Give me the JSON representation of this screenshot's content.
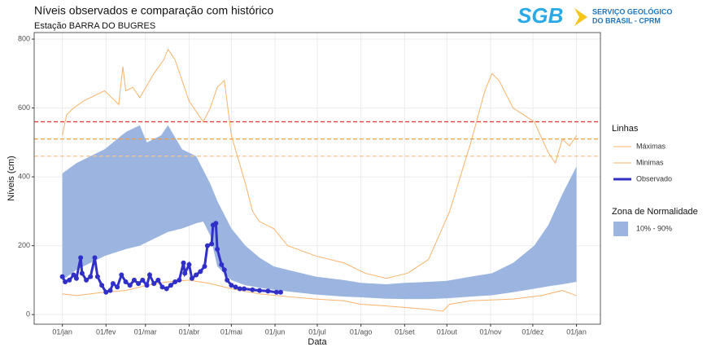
{
  "chart_data": {
    "type": "line",
    "title": "Níveis observados e comparação com histórico",
    "subtitle": "Estação BARRA DO BUGRES",
    "logo": {
      "mark": "SGB",
      "line1": "SERVIÇO GEOLÓGICO",
      "line2": "DO BRASIL - CPRM"
    },
    "x_label": "Data",
    "y_label": "Níveis (cm)",
    "xlim": [
      -20,
      382
    ],
    "ylim": [
      -28,
      819
    ],
    "xticks": [
      {
        "value": 0,
        "label": "01/jan"
      },
      {
        "value": 31,
        "label": "01/fev"
      },
      {
        "value": 59,
        "label": "01/mar"
      },
      {
        "value": 90,
        "label": "01/abr"
      },
      {
        "value": 120,
        "label": "01/mai"
      },
      {
        "value": 151,
        "label": "01/jun"
      },
      {
        "value": 181,
        "label": "01/jul"
      },
      {
        "value": 212,
        "label": "01/ago"
      },
      {
        "value": 243,
        "label": "01/set"
      },
      {
        "value": 273,
        "label": "01/out"
      },
      {
        "value": 304,
        "label": "01/nov"
      },
      {
        "value": 334,
        "label": "01/dez"
      },
      {
        "value": 365,
        "label": "01/jan"
      }
    ],
    "yticks": [
      0,
      200,
      400,
      600,
      800
    ],
    "grid": true,
    "hlines": [
      {
        "value": 560,
        "color": "#e8302a"
      },
      {
        "value": 510,
        "color": "#f39a3c"
      },
      {
        "value": 460,
        "color": "#f8c58a"
      }
    ],
    "legend_title": "Linhas",
    "band_legend_title": "Zona de Normalidade",
    "band": {
      "name": "10% - 90%",
      "color": "#9bb5e0",
      "x": [
        0,
        10,
        20,
        30,
        45,
        55,
        60,
        70,
        75,
        85,
        95,
        100,
        105,
        110,
        120,
        130,
        140,
        150,
        165,
        180,
        200,
        212,
        230,
        243,
        260,
        273,
        290,
        305,
        320,
        335,
        345,
        355,
        365
      ],
      "upper": [
        410,
        440,
        460,
        480,
        530,
        550,
        500,
        520,
        550,
        480,
        460,
        420,
        380,
        330,
        250,
        200,
        165,
        140,
        125,
        110,
        100,
        92,
        88,
        92,
        95,
        98,
        110,
        120,
        150,
        200,
        260,
        350,
        430
      ],
      "lower": [
        100,
        130,
        150,
        170,
        190,
        200,
        210,
        230,
        240,
        250,
        265,
        270,
        230,
        140,
        100,
        85,
        78,
        72,
        65,
        58,
        52,
        50,
        46,
        45,
        45,
        47,
        52,
        56,
        65,
        75,
        82,
        88,
        95
      ]
    },
    "series": [
      {
        "name": "Máximas",
        "color": "#f9b36b",
        "x": [
          0,
          3,
          8,
          15,
          30,
          40,
          43,
          45,
          50,
          55,
          65,
          72,
          75,
          80,
          90,
          100,
          105,
          110,
          115,
          120,
          130,
          135,
          140,
          150,
          160,
          180,
          200,
          215,
          230,
          245,
          260,
          275,
          290,
          300,
          305,
          310,
          320,
          335,
          345,
          350,
          355,
          360,
          365
        ],
        "values": [
          520,
          580,
          600,
          620,
          650,
          610,
          720,
          650,
          660,
          630,
          700,
          740,
          770,
          740,
          620,
          560,
          600,
          660,
          680,
          520,
          380,
          300,
          270,
          250,
          200,
          170,
          150,
          120,
          105,
          120,
          160,
          300,
          500,
          650,
          700,
          680,
          600,
          560,
          470,
          440,
          510,
          490,
          520
        ]
      },
      {
        "name": "Minimas",
        "color": "#f9b36b",
        "x": [
          0,
          10,
          30,
          45,
          60,
          75,
          90,
          105,
          120,
          140,
          160,
          180,
          200,
          212,
          230,
          260,
          270,
          275,
          290,
          320,
          340,
          355,
          365
        ],
        "values": [
          60,
          55,
          65,
          70,
          85,
          95,
          100,
          90,
          75,
          60,
          52,
          45,
          40,
          30,
          25,
          15,
          10,
          30,
          40,
          45,
          55,
          70,
          55
        ]
      },
      {
        "name": "Observado",
        "color": "#3030c8",
        "points": true,
        "x": [
          0,
          2,
          5,
          8,
          10,
          13,
          14,
          17,
          20,
          23,
          25,
          28,
          31,
          34,
          36,
          39,
          42,
          45,
          48,
          51,
          54,
          57,
          60,
          62,
          65,
          68,
          71,
          74,
          77,
          80,
          83,
          86,
          87,
          90,
          92,
          95,
          98,
          101,
          103,
          106,
          107,
          109,
          110,
          113,
          115,
          117,
          120,
          123,
          126,
          129,
          135,
          140,
          146,
          152,
          155
        ],
        "values": [
          110,
          95,
          100,
          115,
          105,
          165,
          120,
          100,
          110,
          165,
          110,
          85,
          65,
          70,
          90,
          80,
          115,
          95,
          85,
          100,
          90,
          100,
          85,
          115,
          90,
          100,
          80,
          75,
          85,
          95,
          100,
          150,
          120,
          145,
          105,
          115,
          125,
          140,
          200,
          205,
          260,
          265,
          190,
          145,
          130,
          100,
          85,
          80,
          75,
          75,
          72,
          70,
          68,
          65,
          65
        ]
      }
    ]
  }
}
